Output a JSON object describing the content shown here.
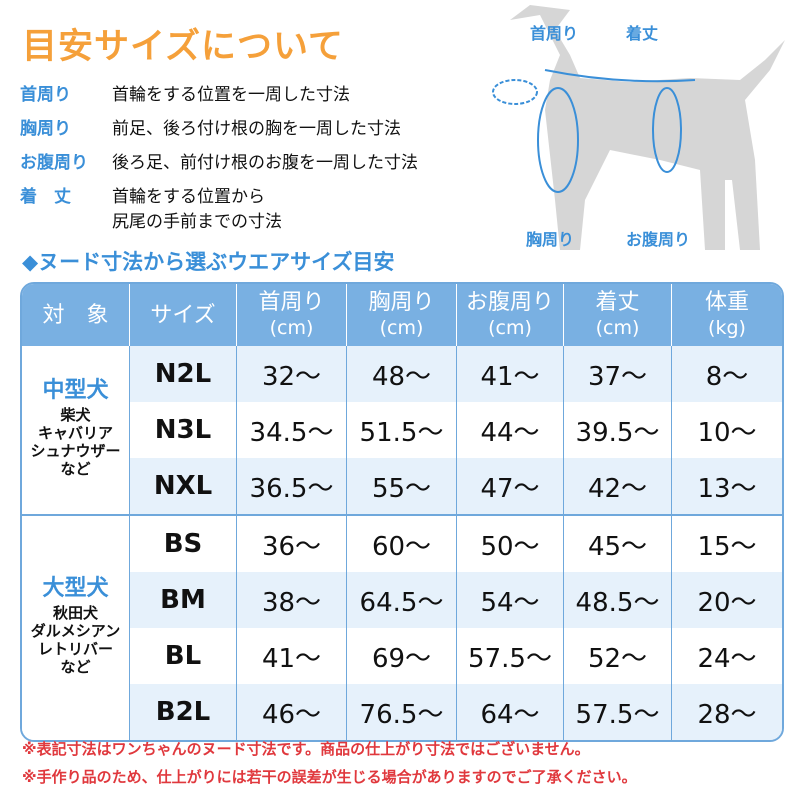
{
  "title": "目安サイズについて",
  "definitions": [
    {
      "label": "首周り",
      "text": "首輪をする位置を一周した寸法"
    },
    {
      "label": "胸周り",
      "text": "前足、後ろ付け根の胸を一周した寸法"
    },
    {
      "label": "お腹周り",
      "text": "後ろ足、前付け根のお腹を一周した寸法"
    },
    {
      "label": "着　丈",
      "text": "首輪をする位置から",
      "text2": "尻尾の手前までの寸法"
    }
  ],
  "diagram": {
    "neck": "首周り",
    "length": "着丈",
    "chest": "胸周り",
    "belly": "お腹周り"
  },
  "subtitle": "◆ヌード寸法から選ぶウエアサイズ目安",
  "table": {
    "headers": [
      {
        "t": "対　象",
        "u": ""
      },
      {
        "t": "サイズ",
        "u": ""
      },
      {
        "t": "首周り",
        "u": "(cm)"
      },
      {
        "t": "胸周り",
        "u": "(cm)"
      },
      {
        "t": "お腹周り",
        "u": "(cm)"
      },
      {
        "t": "着丈",
        "u": "(cm)"
      },
      {
        "t": "体重",
        "u": "(kg)"
      }
    ],
    "groups": [
      {
        "name": "中型犬",
        "breeds": [
          "柴犬",
          "キャバリア",
          "シュナウザー",
          "など"
        ]
      },
      {
        "name": "大型犬",
        "breeds": [
          "秋田犬",
          "ダルメシアン",
          "レトリバー",
          "など"
        ]
      }
    ],
    "rows": [
      [
        "N2L",
        "32〜",
        "48〜",
        "41〜",
        "37〜",
        "8〜"
      ],
      [
        "N3L",
        "34.5〜",
        "51.5〜",
        "44〜",
        "39.5〜",
        "10〜"
      ],
      [
        "NXL",
        "36.5〜",
        "55〜",
        "47〜",
        "42〜",
        "13〜"
      ],
      [
        "BS",
        "36〜",
        "60〜",
        "50〜",
        "45〜",
        "15〜"
      ],
      [
        "BM",
        "38〜",
        "64.5〜",
        "54〜",
        "48.5〜",
        "20〜"
      ],
      [
        "BL",
        "41〜",
        "69〜",
        "57.5〜",
        "52〜",
        "24〜"
      ],
      [
        "B2L",
        "46〜",
        "76.5〜",
        "64〜",
        "57.5〜",
        "28〜"
      ]
    ]
  },
  "notes": [
    "※表記寸法はワンちゃんのヌード寸法です。商品の仕上がり寸法ではございません。",
    "※手作り品のため、仕上がりには若干の誤差が生じる場合がありますのでご了承ください。"
  ],
  "colors": {
    "title": "#f5a03a",
    "accent": "#3a8fd8",
    "header": "#79b0e2",
    "note": "#e0383d"
  }
}
